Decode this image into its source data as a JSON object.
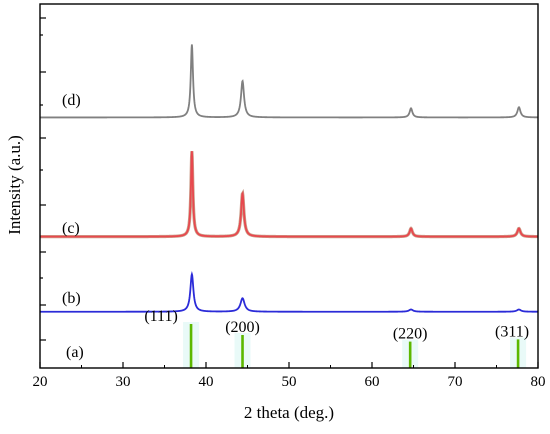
{
  "chart_data": {
    "type": "line",
    "xlabel": "2 theta (deg.)",
    "ylabel": "Intensity (a.u.)",
    "xlim": [
      20,
      80
    ],
    "x_ticks": [
      "20",
      "30",
      "40",
      "50",
      "60",
      "70",
      "80"
    ],
    "y_tick_labels": false,
    "grid": false,
    "series": [
      {
        "name": "(d)",
        "color": "#808080",
        "baseline": 0.04,
        "peaks": [
          {
            "x": 38.3,
            "height": 0.64,
            "width": 0.16
          },
          {
            "x": 44.4,
            "height": 0.32,
            "width": 0.22
          },
          {
            "x": 64.7,
            "height": 0.08,
            "width": 0.2
          },
          {
            "x": 77.7,
            "height": 0.09,
            "width": 0.22
          }
        ]
      },
      {
        "name": "(c)",
        "color": "#e8484e",
        "color_secondary": "#a0522d",
        "baseline": 0.02,
        "peaks": [
          {
            "x": 38.3,
            "height": 0.73,
            "width": 0.14
          },
          {
            "x": 44.4,
            "height": 0.37,
            "width": 0.2
          },
          {
            "x": 64.7,
            "height": 0.07,
            "width": 0.2
          },
          {
            "x": 77.7,
            "height": 0.07,
            "width": 0.22
          }
        ]
      },
      {
        "name": "(b)",
        "color": "#2b2bd8",
        "baseline": 0.03,
        "peaks": [
          {
            "x": 38.3,
            "height": 0.5,
            "width": 0.22
          },
          {
            "x": 44.4,
            "height": 0.18,
            "width": 0.3
          },
          {
            "x": 64.7,
            "height": 0.03,
            "width": 0.3
          },
          {
            "x": 77.7,
            "height": 0.03,
            "width": 0.3
          }
        ]
      }
    ],
    "reference": {
      "name": "(a)",
      "color": "#5cb800",
      "lines": [
        {
          "x": 38.2,
          "hkl": "(111)",
          "intensity": 1.0
        },
        {
          "x": 44.4,
          "hkl": "(200)",
          "intensity": 0.75
        },
        {
          "x": 64.6,
          "hkl": "(220)",
          "intensity": 0.6
        },
        {
          "x": 77.6,
          "hkl": "(311)",
          "intensity": 0.65
        }
      ]
    }
  }
}
